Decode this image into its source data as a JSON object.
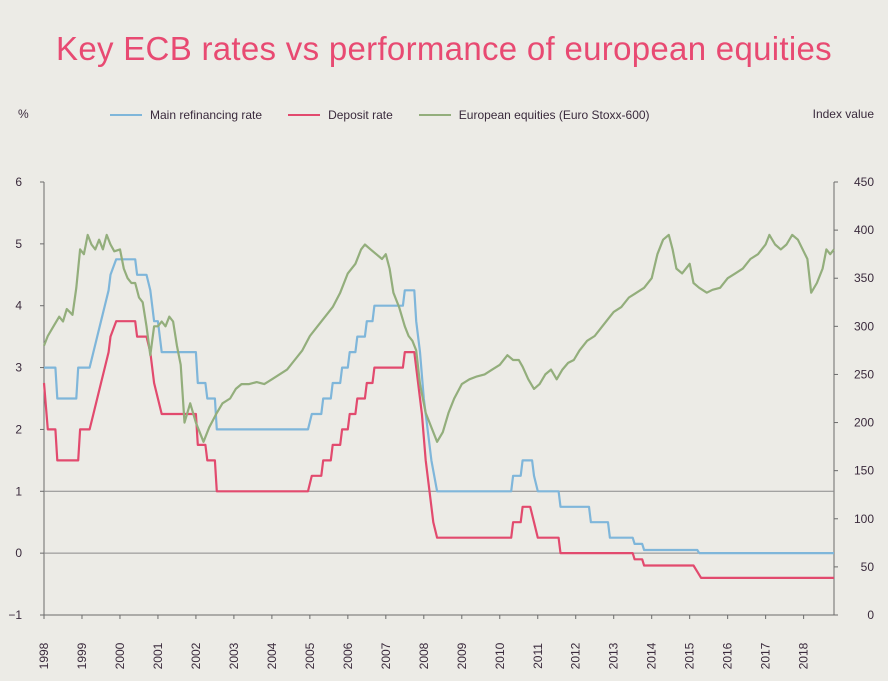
{
  "chart_data": {
    "type": "line",
    "title": "Key ECB rates vs performance of european equities",
    "ylabel_left": "%",
    "ylabel_right": "Index value",
    "y_left_lim": [
      -1,
      6
    ],
    "y_left_ticks": [
      "6",
      "5",
      "4",
      "3",
      "2",
      "1",
      "0",
      "−1"
    ],
    "y_left_tick_values": [
      6,
      5,
      4,
      3,
      2,
      1,
      0,
      -1
    ],
    "y_right_lim": [
      0,
      450
    ],
    "y_right_ticks": [
      "450",
      "400",
      "350",
      "300",
      "250",
      "200",
      "150",
      "100",
      "50",
      "0"
    ],
    "y_right_tick_values": [
      450,
      400,
      350,
      300,
      250,
      200,
      150,
      100,
      50,
      0
    ],
    "x_lim": [
      1998,
      2018.8
    ],
    "x_ticks": [
      "1998",
      "1999",
      "2000",
      "2001",
      "2002",
      "2003",
      "2004",
      "2005",
      "2006",
      "2007",
      "2008",
      "2009",
      "2010",
      "2011",
      "2012",
      "2013",
      "2014",
      "2015",
      "2016",
      "2017",
      "2018"
    ],
    "reference_lines_left": [
      1,
      0
    ],
    "legend_position": "top",
    "series": [
      {
        "name": "Main refinancing rate",
        "axis": "left",
        "color": "#7fb6da",
        "step": true,
        "points": [
          [
            1998,
            3.0
          ],
          [
            1998.3,
            3.0
          ],
          [
            1998.35,
            2.5
          ],
          [
            1998.85,
            2.5
          ],
          [
            1998.9,
            3.0
          ],
          [
            1999.2,
            3.0
          ],
          [
            1999.3,
            3.25
          ],
          [
            1999.4,
            3.5
          ],
          [
            1999.5,
            3.75
          ],
          [
            1999.6,
            4.0
          ],
          [
            1999.7,
            4.25
          ],
          [
            1999.75,
            4.5
          ],
          [
            1999.9,
            4.75
          ],
          [
            2000.4,
            4.75
          ],
          [
            2000.45,
            4.5
          ],
          [
            2000.7,
            4.5
          ],
          [
            2000.8,
            4.25
          ],
          [
            2000.9,
            3.75
          ],
          [
            2001.0,
            3.75
          ],
          [
            2001.05,
            3.5
          ],
          [
            2001.1,
            3.25
          ],
          [
            2002.0,
            3.25
          ],
          [
            2002.05,
            2.75
          ],
          [
            2002.25,
            2.75
          ],
          [
            2002.3,
            2.5
          ],
          [
            2002.5,
            2.5
          ],
          [
            2002.55,
            2.0
          ],
          [
            2004.95,
            2.0
          ],
          [
            2005.05,
            2.25
          ],
          [
            2005.3,
            2.25
          ],
          [
            2005.35,
            2.5
          ],
          [
            2005.55,
            2.5
          ],
          [
            2005.6,
            2.75
          ],
          [
            2005.8,
            2.75
          ],
          [
            2005.85,
            3.0
          ],
          [
            2006.0,
            3.0
          ],
          [
            2006.05,
            3.25
          ],
          [
            2006.2,
            3.25
          ],
          [
            2006.25,
            3.5
          ],
          [
            2006.45,
            3.5
          ],
          [
            2006.5,
            3.75
          ],
          [
            2006.65,
            3.75
          ],
          [
            2006.7,
            4.0
          ],
          [
            2007.45,
            4.0
          ],
          [
            2007.5,
            4.25
          ],
          [
            2007.75,
            4.25
          ],
          [
            2007.8,
            3.75
          ],
          [
            2007.9,
            3.25
          ],
          [
            2008.0,
            2.5
          ],
          [
            2008.1,
            2.0
          ],
          [
            2008.2,
            1.5
          ],
          [
            2008.35,
            1.0
          ],
          [
            2010.3,
            1.0
          ],
          [
            2010.35,
            1.25
          ],
          [
            2010.55,
            1.25
          ],
          [
            2010.6,
            1.5
          ],
          [
            2010.85,
            1.5
          ],
          [
            2010.9,
            1.25
          ],
          [
            2011.0,
            1.0
          ],
          [
            2011.55,
            1.0
          ],
          [
            2011.6,
            0.75
          ],
          [
            2012.35,
            0.75
          ],
          [
            2012.4,
            0.5
          ],
          [
            2012.85,
            0.5
          ],
          [
            2012.9,
            0.25
          ],
          [
            2013.5,
            0.25
          ],
          [
            2013.55,
            0.15
          ],
          [
            2013.75,
            0.15
          ],
          [
            2013.8,
            0.05
          ],
          [
            2015.2,
            0.05
          ],
          [
            2015.25,
            0.0
          ],
          [
            2018.8,
            0.0
          ]
        ]
      },
      {
        "name": "Deposit rate",
        "axis": "left",
        "color": "#e24a6e",
        "step": true,
        "points": [
          [
            1998,
            2.75
          ],
          [
            1998.1,
            2.0
          ],
          [
            1998.3,
            2.0
          ],
          [
            1998.35,
            1.5
          ],
          [
            1998.9,
            1.5
          ],
          [
            1998.95,
            2.0
          ],
          [
            1999.2,
            2.0
          ],
          [
            1999.3,
            2.25
          ],
          [
            1999.4,
            2.5
          ],
          [
            1999.5,
            2.75
          ],
          [
            1999.6,
            3.0
          ],
          [
            1999.7,
            3.25
          ],
          [
            1999.75,
            3.5
          ],
          [
            1999.9,
            3.75
          ],
          [
            2000.4,
            3.75
          ],
          [
            2000.45,
            3.5
          ],
          [
            2000.7,
            3.5
          ],
          [
            2000.8,
            3.25
          ],
          [
            2000.9,
            2.75
          ],
          [
            2001.0,
            2.5
          ],
          [
            2001.1,
            2.25
          ],
          [
            2002.0,
            2.25
          ],
          [
            2002.05,
            1.75
          ],
          [
            2002.25,
            1.75
          ],
          [
            2002.3,
            1.5
          ],
          [
            2002.5,
            1.5
          ],
          [
            2002.55,
            1.0
          ],
          [
            2004.95,
            1.0
          ],
          [
            2005.05,
            1.25
          ],
          [
            2005.3,
            1.25
          ],
          [
            2005.35,
            1.5
          ],
          [
            2005.55,
            1.5
          ],
          [
            2005.6,
            1.75
          ],
          [
            2005.8,
            1.75
          ],
          [
            2005.85,
            2.0
          ],
          [
            2006.0,
            2.0
          ],
          [
            2006.05,
            2.25
          ],
          [
            2006.2,
            2.25
          ],
          [
            2006.25,
            2.5
          ],
          [
            2006.45,
            2.5
          ],
          [
            2006.5,
            2.75
          ],
          [
            2006.65,
            2.75
          ],
          [
            2006.7,
            3.0
          ],
          [
            2007.45,
            3.0
          ],
          [
            2007.5,
            3.25
          ],
          [
            2007.75,
            3.25
          ],
          [
            2007.85,
            2.75
          ],
          [
            2007.95,
            2.25
          ],
          [
            2008.05,
            1.5
          ],
          [
            2008.15,
            1.0
          ],
          [
            2008.25,
            0.5
          ],
          [
            2008.35,
            0.25
          ],
          [
            2010.3,
            0.25
          ],
          [
            2010.35,
            0.5
          ],
          [
            2010.55,
            0.5
          ],
          [
            2010.6,
            0.75
          ],
          [
            2010.8,
            0.75
          ],
          [
            2010.9,
            0.5
          ],
          [
            2011.0,
            0.25
          ],
          [
            2011.55,
            0.25
          ],
          [
            2011.6,
            0.0
          ],
          [
            2013.5,
            0.0
          ],
          [
            2013.55,
            -0.1
          ],
          [
            2013.75,
            -0.1
          ],
          [
            2013.8,
            -0.2
          ],
          [
            2015.1,
            -0.2
          ],
          [
            2015.2,
            -0.3
          ],
          [
            2015.3,
            -0.4
          ],
          [
            2018.8,
            -0.4
          ]
        ]
      },
      {
        "name": "European equities (Euro Stoxx-600)",
        "axis": "right",
        "color": "#93ae7c",
        "step": false,
        "points": [
          [
            1998,
            280
          ],
          [
            1998.1,
            290
          ],
          [
            1998.25,
            300
          ],
          [
            1998.4,
            310
          ],
          [
            1998.5,
            305
          ],
          [
            1998.6,
            318
          ],
          [
            1998.75,
            312
          ],
          [
            1998.85,
            340
          ],
          [
            1998.95,
            380
          ],
          [
            1999.05,
            375
          ],
          [
            1999.15,
            395
          ],
          [
            1999.25,
            385
          ],
          [
            1999.35,
            380
          ],
          [
            1999.45,
            390
          ],
          [
            1999.55,
            380
          ],
          [
            1999.65,
            395
          ],
          [
            1999.75,
            385
          ],
          [
            1999.85,
            378
          ],
          [
            2000.0,
            380
          ],
          [
            2000.1,
            360
          ],
          [
            2000.2,
            350
          ],
          [
            2000.3,
            345
          ],
          [
            2000.4,
            345
          ],
          [
            2000.5,
            330
          ],
          [
            2000.6,
            325
          ],
          [
            2000.7,
            300
          ],
          [
            2000.8,
            270
          ],
          [
            2000.9,
            300
          ],
          [
            2001.0,
            300
          ],
          [
            2001.1,
            305
          ],
          [
            2001.2,
            300
          ],
          [
            2001.3,
            310
          ],
          [
            2001.4,
            305
          ],
          [
            2001.5,
            280
          ],
          [
            2001.6,
            260
          ],
          [
            2001.7,
            200
          ],
          [
            2001.85,
            220
          ],
          [
            2002.0,
            200
          ],
          [
            2002.1,
            190
          ],
          [
            2002.2,
            180
          ],
          [
            2002.35,
            195
          ],
          [
            2002.55,
            210
          ],
          [
            2002.7,
            220
          ],
          [
            2002.9,
            225
          ],
          [
            2003.05,
            235
          ],
          [
            2003.2,
            240
          ],
          [
            2003.4,
            240
          ],
          [
            2003.6,
            242
          ],
          [
            2003.8,
            240
          ],
          [
            2004.0,
            245
          ],
          [
            2004.2,
            250
          ],
          [
            2004.4,
            255
          ],
          [
            2004.6,
            265
          ],
          [
            2004.8,
            275
          ],
          [
            2005.0,
            290
          ],
          [
            2005.2,
            300
          ],
          [
            2005.4,
            310
          ],
          [
            2005.6,
            320
          ],
          [
            2005.8,
            335
          ],
          [
            2006.0,
            355
          ],
          [
            2006.2,
            365
          ],
          [
            2006.35,
            380
          ],
          [
            2006.45,
            385
          ],
          [
            2006.6,
            380
          ],
          [
            2006.75,
            375
          ],
          [
            2006.9,
            370
          ],
          [
            2007.0,
            375
          ],
          [
            2007.1,
            360
          ],
          [
            2007.2,
            335
          ],
          [
            2007.35,
            320
          ],
          [
            2007.5,
            300
          ],
          [
            2007.6,
            290
          ],
          [
            2007.7,
            285
          ],
          [
            2007.8,
            275
          ],
          [
            2007.9,
            240
          ],
          [
            2008.05,
            210
          ],
          [
            2008.2,
            195
          ],
          [
            2008.35,
            180
          ],
          [
            2008.5,
            190
          ],
          [
            2008.65,
            210
          ],
          [
            2008.8,
            225
          ],
          [
            2009.0,
            240
          ],
          [
            2009.2,
            245
          ],
          [
            2009.4,
            248
          ],
          [
            2009.6,
            250
          ],
          [
            2009.8,
            255
          ],
          [
            2010.0,
            260
          ],
          [
            2010.2,
            270
          ],
          [
            2010.35,
            265
          ],
          [
            2010.5,
            265
          ],
          [
            2010.6,
            258
          ],
          [
            2010.75,
            245
          ],
          [
            2010.9,
            235
          ],
          [
            2011.05,
            240
          ],
          [
            2011.2,
            250
          ],
          [
            2011.35,
            255
          ],
          [
            2011.5,
            245
          ],
          [
            2011.65,
            255
          ],
          [
            2011.8,
            262
          ],
          [
            2011.95,
            265
          ],
          [
            2012.1,
            275
          ],
          [
            2012.3,
            285
          ],
          [
            2012.5,
            290
          ],
          [
            2012.7,
            300
          ],
          [
            2012.9,
            310
          ],
          [
            2013.0,
            315
          ],
          [
            2013.2,
            320
          ],
          [
            2013.4,
            330
          ],
          [
            2013.6,
            335
          ],
          [
            2013.8,
            340
          ],
          [
            2014.0,
            350
          ],
          [
            2014.15,
            375
          ],
          [
            2014.3,
            390
          ],
          [
            2014.45,
            395
          ],
          [
            2014.55,
            380
          ],
          [
            2014.65,
            360
          ],
          [
            2014.8,
            355
          ],
          [
            2015.0,
            365
          ],
          [
            2015.1,
            345
          ],
          [
            2015.25,
            340
          ],
          [
            2015.45,
            335
          ],
          [
            2015.6,
            338
          ],
          [
            2015.8,
            340
          ],
          [
            2016.0,
            350
          ],
          [
            2016.2,
            355
          ],
          [
            2016.4,
            360
          ],
          [
            2016.6,
            370
          ],
          [
            2016.8,
            375
          ],
          [
            2017.0,
            385
          ],
          [
            2017.1,
            395
          ],
          [
            2017.25,
            385
          ],
          [
            2017.4,
            380
          ],
          [
            2017.55,
            385
          ],
          [
            2017.7,
            395
          ],
          [
            2017.85,
            390
          ],
          [
            2018.0,
            378
          ],
          [
            2018.1,
            370
          ],
          [
            2018.2,
            335
          ],
          [
            2018.35,
            345
          ],
          [
            2018.5,
            360
          ],
          [
            2018.6,
            380
          ],
          [
            2018.7,
            375
          ],
          [
            2018.8,
            380
          ]
        ]
      }
    ]
  }
}
